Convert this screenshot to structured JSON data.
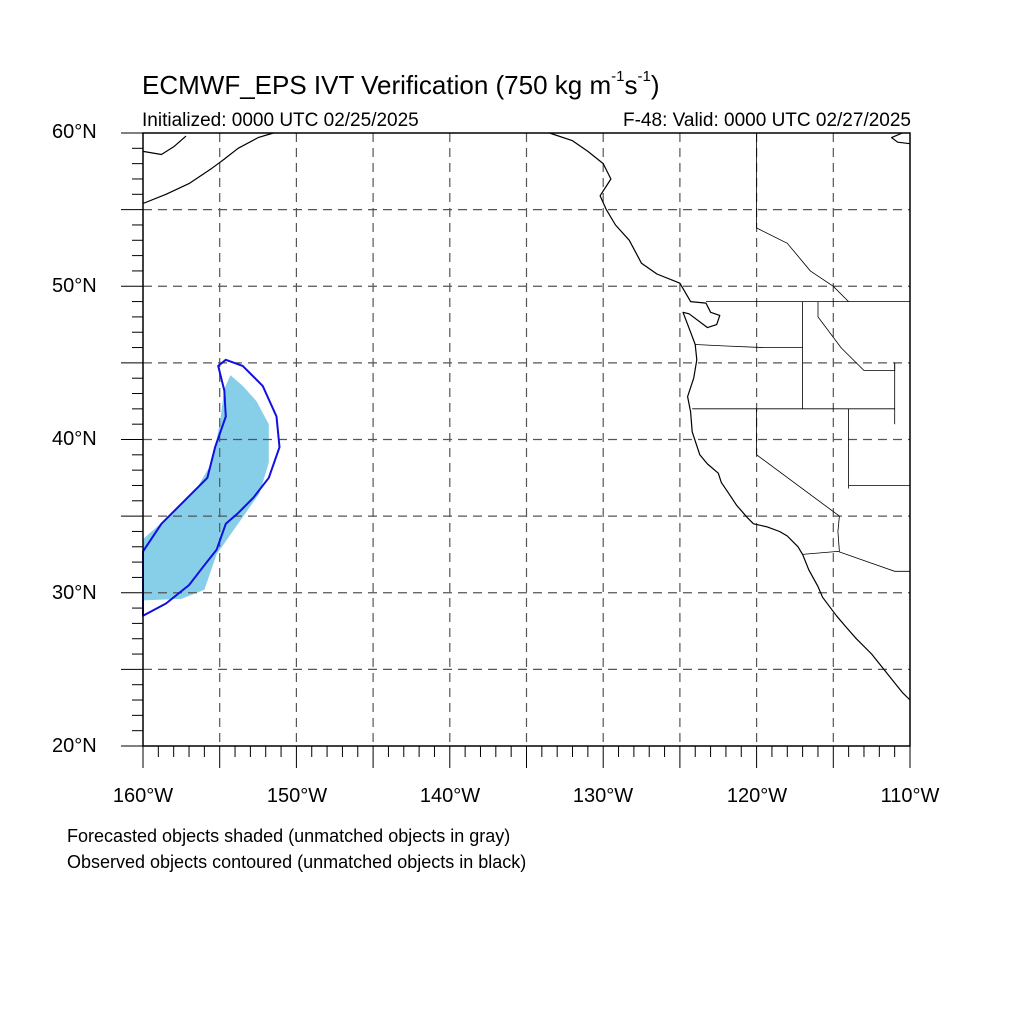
{
  "header": {
    "title_main": "ECMWF_EPS IVT Verification (750 kg m",
    "title_exp1": "-1",
    "title_mid": "s",
    "title_exp2": "-1",
    "title_end": ")",
    "initialized": "Initialized: 0000 UTC 02/25/2025",
    "valid": "F-48: Valid: 0000 UTC 02/27/2025"
  },
  "axes": {
    "lon_range": [
      -160,
      -110
    ],
    "lat_range": [
      20,
      60
    ],
    "x_labels": [
      "160°W",
      "150°W",
      "140°W",
      "130°W",
      "120°W",
      "110°W"
    ],
    "y_labels": [
      "60°N",
      "50°N",
      "40°N",
      "30°N",
      "20°N"
    ],
    "grid_spacing_deg": 5,
    "grid_style": "dashed gray"
  },
  "legend_notes": {
    "line1": "Forecasted objects shaded (unmatched objects in gray)",
    "line2": "Observed objects contoured (unmatched objects in black)"
  },
  "colors": {
    "forecast_fill": "#87CEE8",
    "observed_contour": "#1010E0",
    "grid": "#555555",
    "coast": "#000000"
  },
  "objects": {
    "forecast_shaded": [
      [
        -160,
        29.5
      ],
      [
        -157.5,
        29.6
      ],
      [
        -156,
        30.2
      ],
      [
        -155.2,
        32.5
      ],
      [
        -153.8,
        34.5
      ],
      [
        -152.4,
        36.5
      ],
      [
        -151.8,
        38.5
      ],
      [
        -151.8,
        41
      ],
      [
        -152.6,
        42.5
      ],
      [
        -153.5,
        43.5
      ],
      [
        -154.3,
        44.2
      ],
      [
        -154.7,
        43.3
      ],
      [
        -155,
        41
      ],
      [
        -155.5,
        38.5
      ],
      [
        -156.5,
        36.8
      ],
      [
        -158.3,
        35
      ],
      [
        -160,
        33.5
      ]
    ],
    "observed_contour": [
      [
        -160,
        28.5
      ],
      [
        -158.5,
        29.3
      ],
      [
        -157,
        30.5
      ],
      [
        -156,
        31.8
      ],
      [
        -155.2,
        32.8
      ],
      [
        -154.6,
        34.5
      ],
      [
        -153.8,
        35.2
      ],
      [
        -152.8,
        36.2
      ],
      [
        -151.8,
        37.5
      ],
      [
        -151.1,
        39.5
      ],
      [
        -151.3,
        41.5
      ],
      [
        -152.2,
        43.5
      ],
      [
        -153.5,
        44.8
      ],
      [
        -154.6,
        45.2
      ],
      [
        -155.1,
        44.8
      ],
      [
        -154.7,
        43.2
      ],
      [
        -154.6,
        41.5
      ],
      [
        -155.3,
        39.5
      ],
      [
        -155.8,
        37.5
      ],
      [
        -157,
        36.3
      ],
      [
        -158.8,
        34.5
      ],
      [
        -160,
        32.7
      ]
    ]
  },
  "coastlines": {
    "west_coast": [
      [
        -133.5,
        60
      ],
      [
        -132,
        59.5
      ],
      [
        -131,
        58.8
      ],
      [
        -130,
        58
      ],
      [
        -129.5,
        57
      ],
      [
        -130.2,
        55.9
      ],
      [
        -129.8,
        55
      ],
      [
        -129.2,
        54
      ],
      [
        -128.3,
        53
      ],
      [
        -127.5,
        51.5
      ],
      [
        -126.5,
        50.8
      ],
      [
        -125,
        50.2
      ],
      [
        -124.3,
        49
      ],
      [
        -123.3,
        48.9
      ],
      [
        -123,
        48.3
      ],
      [
        -122.4,
        48.1
      ],
      [
        -122.6,
        47.5
      ],
      [
        -123.2,
        47.3
      ],
      [
        -124.4,
        48.2
      ],
      [
        -124.8,
        48.3
      ],
      [
        -124.3,
        47
      ],
      [
        -124.0,
        46.2
      ],
      [
        -123.9,
        45.2
      ],
      [
        -124.1,
        44
      ],
      [
        -124.5,
        42.8
      ],
      [
        -124.3,
        41.8
      ],
      [
        -124.2,
        40.5
      ],
      [
        -123.7,
        39
      ],
      [
        -123.2,
        38.4
      ],
      [
        -122.5,
        37.8
      ],
      [
        -122.3,
        37.2
      ],
      [
        -121.9,
        36.6
      ],
      [
        -121.3,
        35.7
      ],
      [
        -120.6,
        34.9
      ],
      [
        -120.2,
        34.5
      ],
      [
        -119.3,
        34.3
      ],
      [
        -118.5,
        34
      ],
      [
        -118,
        33.7
      ],
      [
        -117.3,
        33
      ],
      [
        -117,
        32.5
      ],
      [
        -116.6,
        31.5
      ],
      [
        -116,
        30.4
      ],
      [
        -115.7,
        29.7
      ],
      [
        -114.8,
        28.5
      ],
      [
        -114.2,
        27.8
      ],
      [
        -113.5,
        27
      ],
      [
        -112.5,
        26
      ],
      [
        -111.7,
        25
      ],
      [
        -110.5,
        23.5
      ],
      [
        -110,
        23
      ]
    ],
    "alaska_pen": [
      [
        -160,
        55.4
      ],
      [
        -158.5,
        56
      ],
      [
        -157,
        56.7
      ],
      [
        -155.5,
        57.7
      ],
      [
        -154.7,
        58.3
      ],
      [
        -153.8,
        59
      ],
      [
        -152.5,
        59.7
      ],
      [
        -151.5,
        60
      ]
    ],
    "upper_left": [
      [
        -160,
        58.8
      ],
      [
        -158.8,
        58.6
      ],
      [
        -158,
        59.1
      ],
      [
        -157.2,
        59.8
      ]
    ],
    "upper_right": [
      [
        -110,
        59.3
      ],
      [
        -110.8,
        59.4
      ],
      [
        -111.2,
        59.7
      ],
      [
        -110.5,
        60
      ]
    ]
  },
  "boundaries": {
    "us_canada": [
      [
        -123.3,
        49
      ],
      [
        -110,
        49
      ]
    ],
    "wa_or": [
      [
        -124,
        46.2
      ],
      [
        -122,
        46.1
      ],
      [
        -119.5,
        46
      ],
      [
        -117,
        46
      ]
    ],
    "id_west": [
      [
        -117,
        49
      ],
      [
        -117,
        44.5
      ],
      [
        -117,
        42
      ]
    ],
    "or_ca": [
      [
        -124.2,
        42
      ],
      [
        -120,
        42
      ],
      [
        -117,
        42
      ],
      [
        -114,
        42
      ],
      [
        -111,
        42
      ]
    ],
    "ca_nv": [
      [
        -120,
        42
      ],
      [
        -120,
        39
      ],
      [
        -114.6,
        35
      ]
    ],
    "nv_ut": [
      [
        -114,
        42
      ],
      [
        -114,
        36.8
      ]
    ],
    "ut_az": [
      [
        -114,
        37
      ],
      [
        -110,
        37
      ]
    ],
    "az_ca": [
      [
        -114.6,
        35
      ],
      [
        -114.7,
        34
      ],
      [
        -114.6,
        32.7
      ]
    ],
    "mexico": [
      [
        -117,
        32.5
      ],
      [
        -114.7,
        32.7
      ],
      [
        -111,
        31.4
      ],
      [
        -110,
        31.4
      ]
    ],
    "mt_id": [
      [
        -116,
        49
      ],
      [
        -116,
        48
      ],
      [
        -114.5,
        46
      ],
      [
        -113,
        44.5
      ],
      [
        -111,
        44.5
      ],
      [
        -111,
        45
      ]
    ],
    "mt_wy": [
      [
        -111,
        45
      ],
      [
        -111,
        41
      ]
    ],
    "bc_ab": [
      [
        -120,
        60
      ],
      [
        -120,
        53.8
      ],
      [
        -118,
        52.8
      ],
      [
        -116.5,
        51
      ],
      [
        -115,
        50
      ],
      [
        -114,
        49
      ]
    ]
  }
}
